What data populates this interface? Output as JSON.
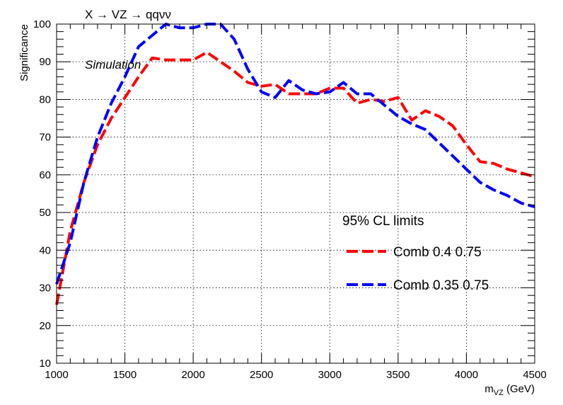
{
  "chart_data": {
    "type": "line",
    "title": "X → VZ → qqνν",
    "annotation": "Simulation",
    "xlabel": "m",
    "xlabel_sub": "VZ",
    "xlabel_unit": " (GeV)",
    "ylabel": "Significance",
    "xlim": [
      1000,
      4500
    ],
    "ylim": [
      10,
      100
    ],
    "xticks": [
      1000,
      1500,
      2000,
      2500,
      3000,
      3500,
      4000,
      4500
    ],
    "yticks": [
      10,
      20,
      30,
      40,
      50,
      60,
      70,
      80,
      90,
      100
    ],
    "grid": true,
    "legend": {
      "header": "95% CL limits",
      "placement": "right-middle"
    },
    "series": [
      {
        "name": "Comb 0.4 0.75",
        "color": "#ff0000",
        "x": [
          1000,
          1100,
          1200,
          1300,
          1400,
          1500,
          1600,
          1700,
          1800,
          1900,
          2000,
          2100,
          2200,
          2300,
          2400,
          2500,
          2600,
          2700,
          2800,
          2900,
          3000,
          3100,
          3200,
          3300,
          3400,
          3500,
          3600,
          3700,
          3800,
          3900,
          4000,
          4100,
          4200,
          4300,
          4400,
          4500
        ],
        "values": [
          25.5,
          45,
          58,
          68,
          75,
          80.5,
          86,
          91,
          90.5,
          90.5,
          90.5,
          92.5,
          90,
          87.5,
          84.5,
          83.5,
          84,
          81.5,
          81.5,
          81.5,
          83,
          83,
          79,
          80,
          79.5,
          80.5,
          74.5,
          77,
          75.5,
          73,
          68,
          63.5,
          63,
          61.5,
          60.5,
          59.5
        ]
      },
      {
        "name": "Comb 0.35 0.75",
        "color": "#0000ff",
        "x": [
          1000,
          1100,
          1200,
          1300,
          1400,
          1500,
          1600,
          1700,
          1800,
          1900,
          2000,
          2100,
          2200,
          2300,
          2400,
          2500,
          2600,
          2700,
          2800,
          2900,
          3000,
          3100,
          3200,
          3300,
          3400,
          3500,
          3600,
          3700,
          3800,
          3900,
          4000,
          4100,
          4200,
          4300,
          4400,
          4500
        ],
        "values": [
          31,
          42,
          58,
          70,
          79,
          86,
          94,
          97,
          100,
          99,
          99,
          100,
          100,
          96,
          88,
          82,
          80.5,
          85,
          82.5,
          81.5,
          82,
          84.5,
          81.5,
          81.5,
          78.5,
          75.5,
          73.5,
          72,
          68.5,
          65,
          61.5,
          58,
          56,
          54.5,
          52.5,
          51.5
        ]
      }
    ]
  }
}
